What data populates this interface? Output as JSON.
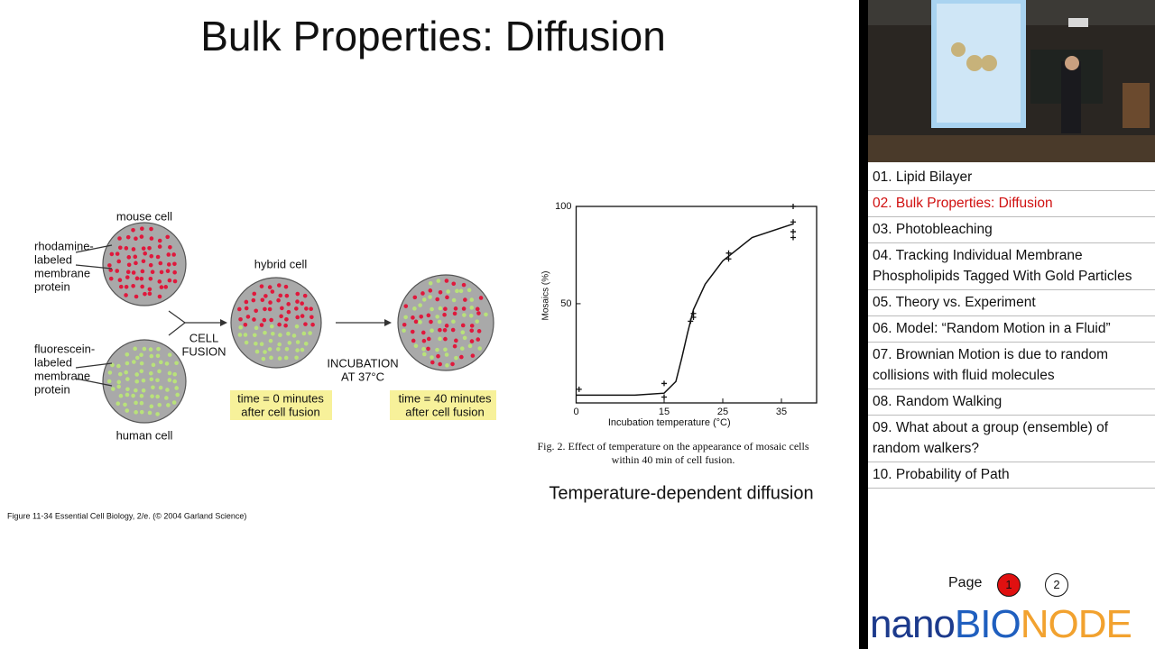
{
  "slide": {
    "title": "Bulk Properties: Diffusion",
    "diagram": {
      "mouse_cell": "mouse cell",
      "rhodamine_label": [
        "rhodamine-",
        "labeled",
        "membrane",
        "protein"
      ],
      "hybrid_cell": "hybrid cell",
      "fluorescein_label": [
        "fluorescein-",
        "labeled",
        "membrane",
        "protein"
      ],
      "human_cell": "human cell",
      "cell_fusion": [
        "CELL",
        "FUSION"
      ],
      "incubation": [
        "INCUBATION",
        "AT 37°C"
      ],
      "time_0": [
        "time = 0 minutes",
        "after cell fusion"
      ],
      "time_40": [
        "time = 40 minutes",
        "after cell fusion"
      ],
      "credit": "Figure 11-34  Essential Cell Biology, 2/e. (© 2004 Garland Science)"
    },
    "chart_data": {
      "type": "scatter",
      "xlabel": "Incubation temperature (°C)",
      "ylabel": "Mosaics (%)",
      "caption": [
        "Fig. 2.  Effect of temperature on the appearance of mosaic cells",
        "within 40 min of cell fusion."
      ],
      "x": [
        0.5,
        15,
        15,
        19.5,
        20,
        20,
        26,
        26,
        37,
        37,
        37,
        37
      ],
      "values": [
        6,
        9,
        2,
        41,
        43,
        45,
        76,
        73,
        100,
        92,
        87,
        84
      ],
      "curve": {
        "x": [
          0,
          10,
          15,
          17,
          18,
          19,
          20,
          22,
          25,
          30,
          37
        ],
        "values": [
          3,
          3,
          4,
          10,
          22,
          35,
          47,
          60,
          72,
          84,
          91
        ]
      },
      "color": "#111111",
      "xlim": [
        0,
        41
      ],
      "ylim": [
        -1,
        100
      ],
      "xticks": [
        0,
        15,
        25,
        35
      ],
      "yticks": [
        50,
        100
      ]
    },
    "subtitle": "Temperature-dependent diffusion"
  },
  "sidebar": {
    "chapters": [
      "01. Lipid Bilayer",
      "02. Bulk Properties: Diffusion",
      "03. Photobleaching",
      "04. Tracking Individual Membrane Phospholipids Tagged With Gold Particles",
      "05. Theory vs. Experiment",
      "06. Model: “Random Motion in a Fluid”",
      "07. Brownian Motion is due to random collisions with fluid molecules",
      "08. Random Walking",
      "09. What about a group (ensemble) of random walkers?",
      "10. Probability of Path"
    ],
    "active_chapter": 1,
    "pager": {
      "label": "Page",
      "pages": [
        1,
        2
      ],
      "current": 0
    },
    "logo": [
      {
        "text": "nano",
        "color": "#1c3a8c"
      },
      {
        "text": "BIO",
        "color": "#1f5fbf"
      },
      {
        "text": "NODE",
        "color": "#f2a22f"
      }
    ]
  }
}
